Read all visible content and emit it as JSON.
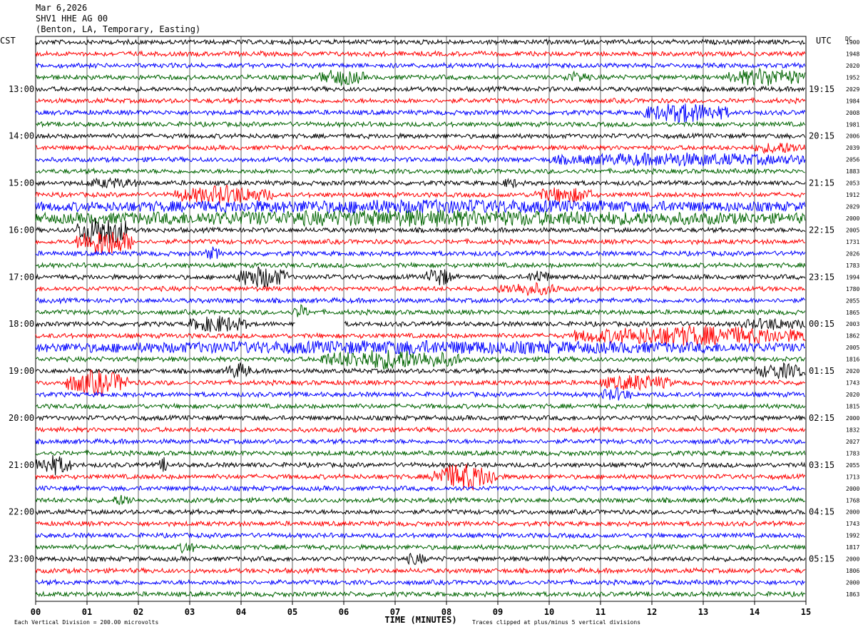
{
  "header": {
    "date": "Mar 6,2026",
    "station": "SHV1 HHE AG 00",
    "location": "(Benton, LA, Temporary, Easting)"
  },
  "chart_data": {
    "type": "line",
    "title": "SHV1 HHE AG 00",
    "left_timezone": "CST",
    "right_timezone": "UTC",
    "dc_label": "DC",
    "xlabel": "TIME (MINUTES)",
    "xlim": [
      0,
      15
    ],
    "x_ticks": [
      "00",
      "01",
      "02",
      "03",
      "04",
      "05",
      "06",
      "07",
      "08",
      "09",
      "10",
      "11",
      "12",
      "13",
      "14",
      "15"
    ],
    "grid": true,
    "trace_colors": [
      "#000000",
      "#ff0000",
      "#0000ff",
      "#006400"
    ],
    "traces_per_hour": 4,
    "minutes_per_trace": 15,
    "hour_labels_left": [
      "13:00",
      "14:00",
      "15:00",
      "16:00",
      "17:00",
      "18:00",
      "19:00",
      "20:00",
      "21:00",
      "22:00",
      "23:00"
    ],
    "hour_labels_right": [
      "19:15",
      "20:15",
      "21:15",
      "22:15",
      "23:15",
      "00:15",
      "01:15",
      "02:15",
      "03:15",
      "04:15",
      "05:15"
    ],
    "dc_offsets": [
      "1900",
      "1948",
      "2020",
      "1952",
      "2029",
      "1984",
      "2008",
      "1981",
      "2006",
      "2039",
      "2056",
      "1883",
      "2053",
      "1912",
      "2029",
      "2000",
      "2005",
      "1731",
      "2026",
      "1783",
      "1994",
      "1780",
      "2055",
      "1865",
      "2003",
      "1862",
      "2005",
      "1816",
      "2020",
      "1743",
      "2020",
      "1815",
      "2000",
      "1832",
      "2027",
      "1783",
      "2055",
      "1713",
      "2000",
      "1768",
      "2000",
      "1743",
      "1992",
      "1817",
      "2000",
      "1806",
      "2000",
      "1863"
    ],
    "bottom_notes": {
      "scale": "Each Vertical Division =  200.00 microvolts",
      "clip": "Traces clipped at plus/minus 5 vertical divisions"
    }
  }
}
